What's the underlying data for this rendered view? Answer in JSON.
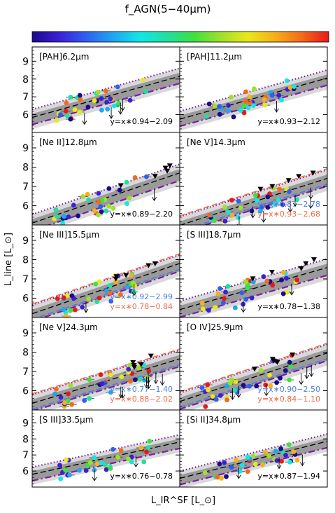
{
  "colorbar": {
    "label": "f_AGN(5−40μm)",
    "colors": [
      "#1a0a8c",
      "#3b1fd6",
      "#2f5ff2",
      "#1fa6f0",
      "#12e6e6",
      "#1fe0a0",
      "#3fe03f",
      "#9fe02a",
      "#e8e81a",
      "#f5b01a",
      "#f56a1a",
      "#e61a1a"
    ]
  },
  "axes": {
    "ylabel": "L_line [L_⊙]",
    "xlabel": "L_IR^SF [L_⊙]",
    "ylim": [
      5,
      9.8
    ],
    "yticks": [
      "5",
      "6",
      "7",
      "8",
      "9"
    ]
  },
  "chart_data": [
    {
      "type": "scatter",
      "title": "[PAH]6.2μm",
      "fits": [
        {
          "text": "y=x∗0.94−2.09",
          "color": "#000000"
        }
      ],
      "intercept": 6.9,
      "slope": 0.55
    },
    {
      "type": "scatter",
      "title": "[PAH]11.2μm",
      "fits": [
        {
          "text": "y=x∗0.93−2.12",
          "color": "#000000"
        }
      ],
      "intercept": 6.8,
      "slope": 0.55
    },
    {
      "type": "scatter",
      "title": "[Ne II]12.8μm",
      "fits": [
        {
          "text": "y=x∗0.89−2.20",
          "color": "#000000"
        }
      ],
      "intercept": 6.3,
      "slope": 0.62
    },
    {
      "type": "scatter",
      "title": "[Ne V]14.3μm",
      "fits": [
        {
          "text": "y=x∗0.87−2.78",
          "color": "#4a7fd8"
        },
        {
          "text": "y=x∗0.93−2.68",
          "color": "#f26a4a"
        }
      ],
      "intercept": 6.1,
      "slope": 0.58
    },
    {
      "type": "scatter",
      "title": "[Ne III]15.5μm",
      "fits": [
        {
          "text": "y=x∗0.92−2.99",
          "color": "#4a7fd8"
        },
        {
          "text": "y=x∗0.78−0.84",
          "color": "#f26a4a"
        }
      ],
      "intercept": 6.4,
      "slope": 0.62
    },
    {
      "type": "scatter",
      "title": "[S III]18.7μm",
      "fits": [
        {
          "text": "y=x∗0.78−1.38",
          "color": "#000000"
        }
      ],
      "intercept": 6.4,
      "slope": 0.52
    },
    {
      "type": "scatter",
      "title": "[Ne V]24.3μm",
      "fits": [
        {
          "text": "y=x∗0.77−1.40",
          "color": "#4a7fd8"
        },
        {
          "text": "y=x∗0.88−2.02",
          "color": "#f26a4a"
        }
      ],
      "intercept": 6.4,
      "slope": 0.55
    },
    {
      "type": "scatter",
      "title": "[O IV]25.9μm",
      "fits": [
        {
          "text": "y=x∗0.90−2.50",
          "color": "#4a7fd8"
        },
        {
          "text": "y=x∗0.84−1.10",
          "color": "#f26a4a"
        }
      ],
      "intercept": 6.6,
      "slope": 0.6
    },
    {
      "type": "scatter",
      "title": "[S III]33.5μm",
      "fits": [
        {
          "text": "y=x∗0.76−0.78",
          "color": "#000000"
        }
      ],
      "intercept": 6.7,
      "slope": 0.48
    },
    {
      "type": "scatter",
      "title": "[Si II]34.8μm",
      "fits": [
        {
          "text": "y=x∗0.87−1.94",
          "color": "#000000"
        }
      ],
      "intercept": 6.6,
      "slope": 0.55
    }
  ]
}
